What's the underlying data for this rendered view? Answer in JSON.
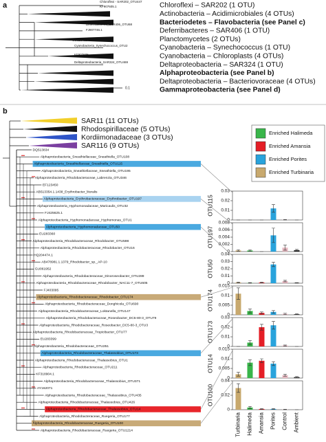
{
  "panel_a": {
    "label": "a",
    "clades": [
      {
        "text": "Chloroflexi – SAR202 (1 OTU)",
        "bold": false
      },
      {
        "text": "Actinobacteria – Acidimicrobiales (4 OTUs)",
        "bold": false
      },
      {
        "text": "Bacteriodetes – Flavobacteria (see Panel c)",
        "bold": true
      },
      {
        "text": "Deferribacteres – SAR406 (1 OTU)",
        "bold": false
      },
      {
        "text": "Planctomycetes (2 OTUs)",
        "bold": false
      },
      {
        "text": "Cyanobacteria – Synechococcus (1 OTU)",
        "bold": false
      },
      {
        "text": "Cyanobacteria – Chloroplasts (4 OTUs)",
        "bold": false
      },
      {
        "text": "Deltaproteobacteria – SAR324 (1 OTU)",
        "bold": false
      },
      {
        "text": "Alphaproteobacteria (see Panel b)",
        "bold": true
      },
      {
        "text": "Deltaproteobacteria – Bacteriovoraceae (4 OTUs)",
        "bold": false
      },
      {
        "text": "Gammaproteobacteria (see Panel d)",
        "bold": true
      }
    ],
    "leaves": [
      "Chloroflexi - SAR202_OTU447",
      "KF907605.1",
      "Deferribacteres_SAR406_OTU68",
      "FJ907746.1",
      "GU826462",
      "Cyanobacteria_Synechococcus_OTU2",
      "KF907605",
      "Deltaproteobacteria_SAR324_OTU469"
    ],
    "scale": "0.1"
  },
  "panel_b": {
    "label": "b",
    "clades": [
      {
        "text": "SAR11 (11 OTUs)",
        "color": "#f2cf2a"
      },
      {
        "text": "Rhodospirillaceae (5 OTUs)",
        "color": "#111111"
      },
      {
        "text": "Kordiimonadaceae (3 OTUs)",
        "color": "#2f55c8"
      },
      {
        "text": "SAR116 (9 OTUs)",
        "color": "#7a3fa0"
      }
    ],
    "legend": [
      {
        "label": "Enriched Halimeda",
        "color": "#39b54a"
      },
      {
        "label": "Enriched Amansia",
        "color": "#e41e26"
      },
      {
        "label": "Enriched Porites",
        "color": "#29a3dc"
      },
      {
        "label": "Enriched Turbinaria",
        "color": "#c8a96e"
      }
    ],
    "leaves": [
      {
        "text": "DQ513834"
      },
      {
        "text": "Alphaproteobacteria_Sneathiellaceae_Sneathiella_OTU108"
      },
      {
        "text": "Alphaproteobacteria_Sneathiellaceae_Sneathiella_OTU115",
        "highlight": "#4aa9e0"
      },
      {
        "text": "Alphaproteobacteria_Sneathiellaceae_Sneathiella_OTU195"
      },
      {
        "text": "Alphaproteobacteria_Rhodobacteraceae_Labrenzia_OTU346"
      },
      {
        "text": "EF123450"
      },
      {
        "text": "AB513354.1.1438_Erythrobacter_litoralis"
      },
      {
        "text": "Alphaproteobacteria_Erythrobacteraceae_Erythrobacter_OTU197",
        "highlight": "#a9d3f0"
      },
      {
        "text": "Alphaproteobacteria_Hyphomonadaceae_Maricaulis_OTU32"
      },
      {
        "text": "FJ425625.1"
      },
      {
        "text": "Alphaproteobacteria_Hyphomonadaceae_Hyphomonas_OTU1"
      },
      {
        "text": "Alphaproteobacteria_Hyphomonadaceae_OTU50",
        "highlight": "#4aa9e0"
      },
      {
        "text": "EU283360"
      },
      {
        "text": "Alphaproteobacteria_Rhodobacteraceae_Rhodobacter_OTU598"
      },
      {
        "text": "Alphaproteobacteria_Rhodobacteraceae_Rhodobacter_OTU16"
      },
      {
        "text": "HQ204474.1"
      },
      {
        "text": "AB478981.1.1379_Rhodobacter_sp._AP-10"
      },
      {
        "text": "GU061952"
      },
      {
        "text": "Alphaproteobacteria_Rhodobacteraceae_Dinoroseobacter_OTU289"
      },
      {
        "text": "Alphaproteobacteria_Rhodobacteraceae_Rhodobacter_NAC11-7_OTU605"
      },
      {
        "text": "FJ403095"
      },
      {
        "text": "Alphaproteobacteria_Rhodobacteraceae_Rhodobacter_OTU174",
        "highlight": "#c8aa78"
      },
      {
        "text": "Alphaproteobacteria_Rhodobacteraceae_Donghicola_OTU690"
      },
      {
        "text": "Alphaproteobacteria_Rhodobacteraceae_Loktanella_OTU147"
      },
      {
        "text": "Alphaproteobacteria_Rhodobacteraceae_Roseobacter_DC5-80-3_OTU79"
      },
      {
        "text": "Alphaproteobacteria_Rhodobacteraceae_Roseobacter_DC5-80-3_OTU3"
      },
      {
        "text": "Alphaproteobacteria_Rhodobacteraceae_Tropicibacter_OTU77"
      },
      {
        "text": "EU283399"
      },
      {
        "text": "Alphaproteobacteria_Rhodobacteraceae_OTU251"
      },
      {
        "text": "Alphaproteobacteria_Rhodobacteraceae_Thalassobius_OTU173",
        "highlight": "#4aa9e0"
      },
      {
        "text": "Alphaproteobacteria_Rhodobacteraceae_Thalassobius_OTU1"
      },
      {
        "text": "Alphaproteobacteria_Rhodobacteraceae_OTU211"
      },
      {
        "text": "KF318904.1"
      },
      {
        "text": "Alphaproteobacteria_Rhodobacteraceae_Thalassobius_OTU371"
      },
      {
        "text": "AY162071"
      },
      {
        "text": "Alphaproteobacteria_Rhodobacteraceae_Thalassobius_OTU435"
      },
      {
        "text": "Alphaproteobacteria_Rhodobacteraceae_Thalassobius_OTU426"
      },
      {
        "text": "Alphaproteobacteria_Rhodobacteraceae_Thalassobius_OTU14",
        "highlight": "#e8262b"
      },
      {
        "text": "Alphaproteobacteria_Rhodobacteraceae_Ruegeria_OTU177"
      },
      {
        "text": "Alphaproteobacteria_Rhodobacteraceae_Ruegeria_OTU100",
        "highlight": "#c8aa78"
      },
      {
        "text": "Alphaproteobacteria_Rhodobacteraceae_Ruegeria_OTU1214"
      }
    ]
  },
  "chart_data": [
    {
      "type": "bar",
      "ylabel": "OTU115",
      "values": [
        0,
        0,
        0,
        0.012,
        0.0002,
        0
      ],
      "errors": [
        0,
        0,
        0,
        0.004,
        0.0002,
        0
      ],
      "colors": [
        "#c8a96e",
        "#39b54a",
        "#e41e26",
        "#29a3dc",
        "#e6b8c0",
        "#222222"
      ],
      "ylim": [
        0,
        0.03
      ],
      "yticks": [
        0,
        0.01,
        0.02,
        0.03
      ]
    },
    {
      "type": "bar",
      "ylabel": "OTU197",
      "values": [
        0.0003,
        0.0003,
        0,
        0.0045,
        0.0011,
        0.0004
      ],
      "errors": [
        0.0002,
        0.0002,
        0,
        0.002,
        0.0007,
        0.0002
      ],
      "colors": [
        "#c8a96e",
        "#39b54a",
        "#e41e26",
        "#29a3dc",
        "#e6b8c0",
        "#222222"
      ],
      "ylim": [
        0,
        0.008
      ],
      "yticks": [
        0,
        0.002,
        0.004,
        0.006,
        0.008
      ]
    },
    {
      "type": "bar",
      "ylabel": "OTU50",
      "values": [
        0.001,
        0.0005,
        0.001,
        0.026,
        0.003,
        0.0005
      ],
      "errors": [
        0.0005,
        0.0003,
        0.0005,
        0.003,
        0.001,
        0.0003
      ],
      "colors": [
        "#c8a96e",
        "#39b54a",
        "#e41e26",
        "#29a3dc",
        "#e6b8c0",
        "#222222"
      ],
      "ylim": [
        0,
        0.04
      ],
      "yticks": [
        0,
        0.01,
        0.02,
        0.03,
        0.04
      ]
    },
    {
      "type": "bar",
      "ylabel": "OTU174",
      "values": [
        0.011,
        0.002,
        0.001,
        0.0015,
        0.0005,
        0.0003
      ],
      "errors": [
        0.003,
        0.001,
        0.0005,
        0.0007,
        0.0003,
        0.0002
      ],
      "colors": [
        "#c8a96e",
        "#39b54a",
        "#e41e26",
        "#29a3dc",
        "#e6b8c0",
        "#222222"
      ],
      "ylim": [
        0,
        0.015
      ],
      "yticks": [
        0,
        0.005,
        0.01,
        0.015
      ]
    },
    {
      "type": "bar",
      "ylabel": "OTU173",
      "values": [
        0,
        0.004,
        0.02,
        0.022,
        0.001,
        0
      ],
      "errors": [
        0,
        0.002,
        0.003,
        0.004,
        0.0005,
        0
      ],
      "colors": [
        "#c8a96e",
        "#39b54a",
        "#e41e26",
        "#29a3dc",
        "#e6b8c0",
        "#222222"
      ],
      "ylim": [
        0,
        0.03
      ],
      "yticks": [
        0,
        0.01,
        0.02,
        0.03
      ]
    },
    {
      "type": "bar",
      "ylabel": "OTU14",
      "values": [
        0.002,
        0.008,
        0.009,
        0.0075,
        0.0015,
        0.0005
      ],
      "errors": [
        0.001,
        0.0015,
        0.001,
        0.001,
        0.0005,
        0.0003
      ],
      "colors": [
        "#c8a96e",
        "#39b54a",
        "#e41e26",
        "#29a3dc",
        "#e6b8c0",
        "#222222"
      ],
      "ylim": [
        0,
        0.015
      ],
      "yticks": [
        0,
        0.005,
        0.01,
        0.015
      ]
    },
    {
      "type": "bar",
      "ylabel": "OTU100",
      "categories": [
        "Turbinaria",
        "Halimeda",
        "Amansia",
        "Porites",
        "Control",
        "Ambient"
      ],
      "values": [
        0.03,
        0.003,
        0.001,
        0.001,
        0.0003,
        0
      ],
      "errors": [
        0.006,
        0.0015,
        0.0005,
        0.0005,
        0.0002,
        0
      ],
      "colors": [
        "#c8a96e",
        "#39b54a",
        "#e41e26",
        "#29a3dc",
        "#e6b8c0",
        "#222222"
      ],
      "ylim": [
        0,
        0.04
      ],
      "yticks": [
        0,
        0.02,
        0.04
      ]
    }
  ]
}
